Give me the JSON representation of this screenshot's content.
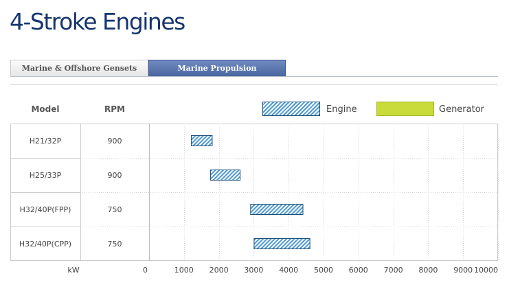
{
  "page": {
    "title": "4-Stroke Engines"
  },
  "tabs": [
    {
      "label": "Marine & Offshore Gensets",
      "active": false
    },
    {
      "label": "Marine Propulsion",
      "active": true
    }
  ],
  "table_headers": {
    "model": "Model",
    "rpm": "RPM"
  },
  "legend": [
    {
      "label": "Engine",
      "pattern": "hatched",
      "color": "#4e9ad1"
    },
    {
      "label": "Generator",
      "pattern": "solid",
      "color": "#c9db3a"
    }
  ],
  "chart_data": {
    "type": "bar",
    "orientation": "horizontal-range",
    "xlabel": "kW",
    "xlim": [
      0,
      10000
    ],
    "xticks": [
      0,
      1000,
      2000,
      3000,
      4000,
      5000,
      6000,
      7000,
      8000,
      9000,
      10000
    ],
    "grid": true,
    "rows": [
      {
        "model": "H21/32P",
        "rpm": "900",
        "engine": [
          1200,
          1800
        ]
      },
      {
        "model": "H25/33P",
        "rpm": "900",
        "engine": [
          1750,
          2600
        ]
      },
      {
        "model": "H32/40P(FPP)",
        "rpm": "750",
        "engine": [
          2900,
          4400
        ]
      },
      {
        "model": "H32/40P(CPP)",
        "rpm": "750",
        "engine": [
          3000,
          4600
        ]
      }
    ]
  }
}
